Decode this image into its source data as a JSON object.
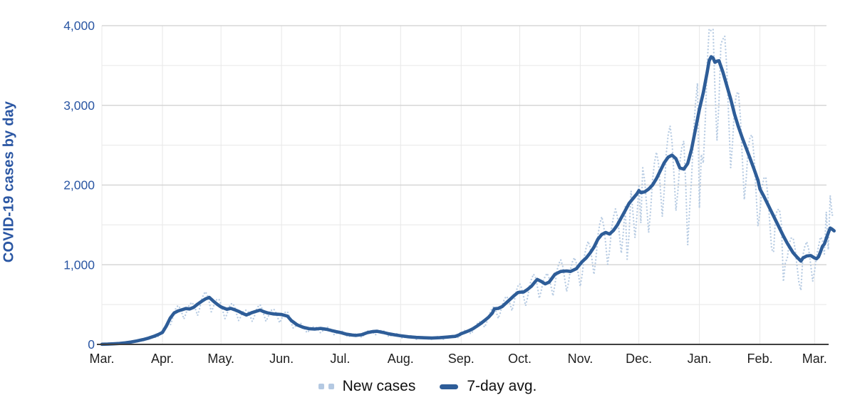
{
  "chart": {
    "y_axis_title": "COVID-19 cases by day",
    "colors": {
      "avg_line": "#2e5d98",
      "new_cases_dots": "#b4c9e2",
      "y_tick_text": "#2a56a3",
      "x_tick_text": "#1f1f1f",
      "grid_major": "#cfcfcf",
      "grid_minor": "#e8e8e8",
      "axis_line": "#3f3f3f",
      "legend_text": "#111111"
    },
    "legend": {
      "items": [
        {
          "label": "New cases",
          "style": "dotted"
        },
        {
          "label": "7-day avg.",
          "style": "solid"
        }
      ]
    }
  },
  "chart_data": {
    "type": "line",
    "title": "",
    "xlabel": "",
    "ylabel": "COVID-19 cases by day",
    "ylim": [
      0,
      4000
    ],
    "grid": true,
    "legend_position": "bottom-center",
    "x_unit": "days since first March tick (Mar. 2020 through Mar. 2021)",
    "x_tick_labels": [
      "Mar.",
      "Apr.",
      "May.",
      "Jun.",
      "Jul.",
      "Aug.",
      "Sep.",
      "Oct.",
      "Nov.",
      "Dec.",
      "Jan.",
      "Feb.",
      "Mar."
    ],
    "month_tick_days": [
      0,
      31,
      61,
      92,
      122,
      153,
      184,
      214,
      245,
      275,
      306,
      337,
      365
    ],
    "y_ticks": [
      {
        "value": 0,
        "label": "0"
      },
      {
        "value": 1000,
        "label": "1,000"
      },
      {
        "value": 2000,
        "label": "2,000"
      },
      {
        "value": 3000,
        "label": "3,000"
      },
      {
        "value": 4000,
        "label": "4,000"
      }
    ],
    "y_minor_ticks": [
      500,
      1500,
      2500,
      3500
    ],
    "series": [
      {
        "name": "7-day avg.",
        "style": "solid",
        "points": [
          [
            0,
            2
          ],
          [
            3,
            4
          ],
          [
            6,
            7
          ],
          [
            9,
            12
          ],
          [
            12,
            20
          ],
          [
            15,
            30
          ],
          [
            18,
            44
          ],
          [
            21,
            60
          ],
          [
            24,
            80
          ],
          [
            27,
            105
          ],
          [
            29,
            125
          ],
          [
            31,
            150
          ],
          [
            33,
            230
          ],
          [
            35,
            330
          ],
          [
            37,
            395
          ],
          [
            39,
            420
          ],
          [
            41,
            435
          ],
          [
            43,
            450
          ],
          [
            45,
            445
          ],
          [
            47,
            465
          ],
          [
            49,
            505
          ],
          [
            51,
            540
          ],
          [
            53,
            570
          ],
          [
            55,
            590
          ],
          [
            57,
            545
          ],
          [
            59,
            505
          ],
          [
            61,
            470
          ],
          [
            64,
            440
          ],
          [
            66,
            452
          ],
          [
            68,
            435
          ],
          [
            70,
            415
          ],
          [
            72,
            390
          ],
          [
            74,
            370
          ],
          [
            77,
            400
          ],
          [
            79,
            415
          ],
          [
            81,
            430
          ],
          [
            83,
            410
          ],
          [
            85,
            395
          ],
          [
            88,
            382
          ],
          [
            92,
            375
          ],
          [
            95,
            355
          ],
          [
            97,
            300
          ],
          [
            100,
            245
          ],
          [
            103,
            215
          ],
          [
            106,
            198
          ],
          [
            109,
            192
          ],
          [
            112,
            200
          ],
          [
            115,
            190
          ],
          [
            118,
            172
          ],
          [
            120,
            160
          ],
          [
            122,
            150
          ],
          [
            125,
            130
          ],
          [
            128,
            118
          ],
          [
            130,
            113
          ],
          [
            133,
            122
          ],
          [
            136,
            148
          ],
          [
            139,
            162
          ],
          [
            141,
            165
          ],
          [
            144,
            150
          ],
          [
            147,
            132
          ],
          [
            150,
            120
          ],
          [
            153,
            108
          ],
          [
            157,
            96
          ],
          [
            161,
            88
          ],
          [
            165,
            83
          ],
          [
            169,
            80
          ],
          [
            173,
            84
          ],
          [
            177,
            92
          ],
          [
            181,
            101
          ],
          [
            183,
            120
          ],
          [
            184,
            135
          ],
          [
            186,
            152
          ],
          [
            188,
            172
          ],
          [
            190,
            196
          ],
          [
            192,
            228
          ],
          [
            194,
            262
          ],
          [
            196,
            300
          ],
          [
            198,
            340
          ],
          [
            200,
            395
          ],
          [
            201,
            447
          ],
          [
            203,
            452
          ],
          [
            205,
            475
          ],
          [
            207,
            520
          ],
          [
            209,
            565
          ],
          [
            211,
            610
          ],
          [
            213,
            650
          ],
          [
            214,
            655
          ],
          [
            216,
            658
          ],
          [
            218,
            690
          ],
          [
            220,
            730
          ],
          [
            222,
            790
          ],
          [
            223,
            815
          ],
          [
            225,
            790
          ],
          [
            227,
            760
          ],
          [
            229,
            780
          ],
          [
            232,
            880
          ],
          [
            235,
            915
          ],
          [
            238,
            922
          ],
          [
            240,
            915
          ],
          [
            243,
            950
          ],
          [
            245,
            1010
          ],
          [
            246,
            1040
          ],
          [
            248,
            1085
          ],
          [
            250,
            1145
          ],
          [
            252,
            1220
          ],
          [
            254,
            1320
          ],
          [
            256,
            1380
          ],
          [
            258,
            1405
          ],
          [
            260,
            1385
          ],
          [
            262,
            1430
          ],
          [
            264,
            1500
          ],
          [
            266,
            1590
          ],
          [
            268,
            1680
          ],
          [
            270,
            1770
          ],
          [
            272,
            1830
          ],
          [
            274,
            1890
          ],
          [
            275,
            1930
          ],
          [
            276,
            1905
          ],
          [
            278,
            1915
          ],
          [
            280,
            1950
          ],
          [
            282,
            2000
          ],
          [
            284,
            2080
          ],
          [
            286,
            2180
          ],
          [
            288,
            2280
          ],
          [
            290,
            2350
          ],
          [
            292,
            2375
          ],
          [
            294,
            2330
          ],
          [
            296,
            2215
          ],
          [
            298,
            2200
          ],
          [
            300,
            2270
          ],
          [
            302,
            2450
          ],
          [
            304,
            2700
          ],
          [
            306,
            2950
          ],
          [
            308,
            3160
          ],
          [
            310,
            3420
          ],
          [
            311,
            3560
          ],
          [
            312,
            3610
          ],
          [
            313,
            3595
          ],
          [
            314,
            3540
          ],
          [
            315,
            3555
          ],
          [
            316,
            3560
          ],
          [
            317,
            3490
          ],
          [
            318,
            3420
          ],
          [
            320,
            3250
          ],
          [
            322,
            3080
          ],
          [
            324,
            2890
          ],
          [
            326,
            2730
          ],
          [
            328,
            2590
          ],
          [
            330,
            2460
          ],
          [
            332,
            2330
          ],
          [
            334,
            2200
          ],
          [
            336,
            2060
          ],
          [
            337,
            1950
          ],
          [
            339,
            1860
          ],
          [
            341,
            1760
          ],
          [
            343,
            1660
          ],
          [
            345,
            1560
          ],
          [
            347,
            1460
          ],
          [
            349,
            1360
          ],
          [
            351,
            1270
          ],
          [
            353,
            1190
          ],
          [
            354,
            1150
          ],
          [
            356,
            1095
          ],
          [
            358,
            1045
          ],
          [
            359,
            1085
          ],
          [
            361,
            1110
          ],
          [
            363,
            1115
          ],
          [
            364,
            1100
          ],
          [
            365,
            1085
          ],
          [
            366,
            1075
          ],
          [
            367,
            1100
          ],
          [
            368,
            1160
          ],
          [
            369,
            1230
          ],
          [
            370,
            1260
          ],
          [
            371,
            1330
          ],
          [
            372,
            1400
          ],
          [
            373,
            1460
          ],
          [
            374,
            1445
          ],
          [
            375,
            1425
          ]
        ]
      },
      {
        "name": "New cases",
        "style": "dotted",
        "derived_daily_noise": {
          "from": "7-day avg.",
          "weekly_factors": [
            0.72,
            0.85,
            1.03,
            1.12,
            1.16,
            1.07,
            0.9
          ],
          "special_day_factors": {
            "269": 0.62,
            "270": 0.78,
            "276": 0.8,
            "299": 0.9,
            "300": 0.55,
            "301": 0.72,
            "306": 0.58,
            "307": 0.78,
            "312": 1.09,
            "313": 1.1,
            "317": 1.08,
            "344": 0.72,
            "349": 0.58,
            "350": 0.78,
            "358": 0.65,
            "371": 1.25,
            "373": 1.28
          },
          "value_cap": 3960,
          "day_range": [
            0,
            375
          ]
        }
      }
    ]
  }
}
